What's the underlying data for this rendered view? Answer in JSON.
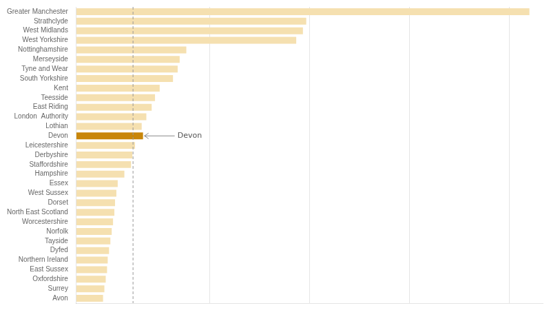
{
  "chart_data": {
    "type": "bar",
    "orientation": "horizontal",
    "categories": [
      "Greater Manchester",
      "Strathclyde",
      "West Midlands",
      "West Yorkshire",
      "Nottinghamshire",
      "Merseyside",
      "Tyne and Wear",
      "South Yorkshire",
      "Kent",
      "Teesside",
      "East Riding",
      "London  Authority",
      "Lothian",
      "Devon",
      "Leicestershire",
      "Derbyshire",
      "Staffordshire",
      "Hampshire",
      "Essex",
      "West Sussex",
      "Dorset",
      "North East Scotland",
      "Worcestershire",
      "Norfolk",
      "Tayside",
      "Dyfed",
      "Northern Ireland",
      "East Sussex",
      "Oxfordshire",
      "Surrey",
      "Avon"
    ],
    "values": [
      680,
      345,
      340,
      330,
      165,
      155,
      152,
      145,
      125,
      118,
      113,
      105,
      98,
      100,
      88,
      84,
      82,
      72,
      62,
      60,
      58,
      57,
      55,
      53,
      51,
      49,
      47,
      46,
      44,
      42,
      40
    ],
    "colors": [
      "#f5e0b0",
      "#f5e0b0",
      "#f5e0b0",
      "#f5e0b0",
      "#f5e0b0",
      "#f5e0b0",
      "#f5e0b0",
      "#f5e0b0",
      "#f5e0b0",
      "#f5e0b0",
      "#f5e0b0",
      "#f5e0b0",
      "#f5e0b0",
      "#c8860a",
      "#f5e0b0",
      "#f5e0b0",
      "#f5e0b0",
      "#f5e0b0",
      "#f5e0b0",
      "#f5e0b0",
      "#f5e0b0",
      "#f5e0b0",
      "#f5e0b0",
      "#f5e0b0",
      "#f5e0b0",
      "#f5e0b0",
      "#f5e0b0",
      "#f5e0b0",
      "#f5e0b0",
      "#f5e0b0",
      "#f5e0b0"
    ],
    "xlim": [
      0,
      700
    ],
    "xticks": [
      200,
      350,
      500,
      650
    ],
    "grid": true,
    "tick_labels": "y",
    "reference_line": 85,
    "annotations": [
      {
        "text": "Devon",
        "category": "Devon",
        "value": 100
      }
    ]
  }
}
